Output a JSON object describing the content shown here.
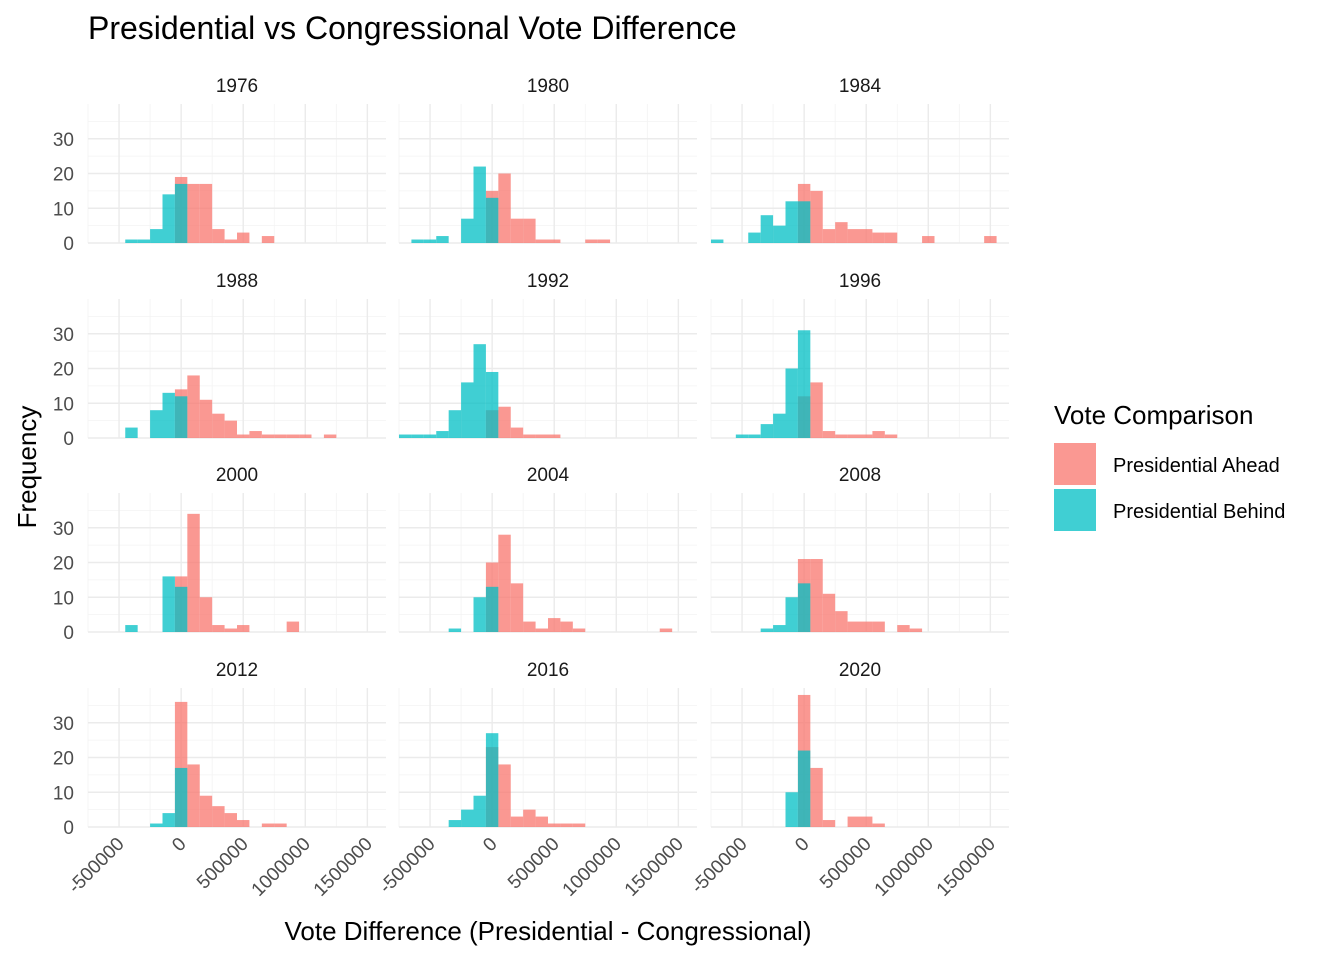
{
  "chart_data": {
    "type": "histogram",
    "title": "Presidential vs Congressional Vote Difference",
    "xlabel": "Vote Difference (Presidential - Congressional)",
    "ylabel": "Frequency",
    "xlim": [
      -750000,
      1650000
    ],
    "ylim": [
      0,
      40
    ],
    "x_ticks": [
      -500000,
      0,
      500000,
      1000000,
      1500000
    ],
    "x_tick_labels": [
      "-500000",
      "0",
      "500000",
      "1000000",
      "1500000"
    ],
    "y_ticks": [
      0,
      10,
      20,
      30
    ],
    "y_tick_labels": [
      "0",
      "10",
      "20",
      "30"
    ],
    "bin_width": 100000,
    "facet_layout": "3 columns, 4 rows",
    "legend": {
      "title": "Vote Comparison",
      "position": "right",
      "entries": [
        {
          "label": "Presidential Ahead",
          "color": "#F8766D"
        },
        {
          "label": "Presidential Behind",
          "color": "#00BFC4"
        }
      ]
    },
    "facets": [
      {
        "label": "1976",
        "behind": [
          {
            "x": -400000,
            "y": 1
          },
          {
            "x": -300000,
            "y": 1
          },
          {
            "x": -200000,
            "y": 4
          },
          {
            "x": -100000,
            "y": 14
          },
          {
            "x": 0,
            "y": 17
          }
        ],
        "ahead": [
          {
            "x": 0,
            "y": 19
          },
          {
            "x": 100000,
            "y": 17
          },
          {
            "x": 200000,
            "y": 17
          },
          {
            "x": 300000,
            "y": 4
          },
          {
            "x": 400000,
            "y": 1
          },
          {
            "x": 500000,
            "y": 3
          },
          {
            "x": 700000,
            "y": 2
          }
        ]
      },
      {
        "label": "1980",
        "behind": [
          {
            "x": -600000,
            "y": 1
          },
          {
            "x": -500000,
            "y": 1
          },
          {
            "x": -400000,
            "y": 2
          },
          {
            "x": -200000,
            "y": 7
          },
          {
            "x": -100000,
            "y": 22
          },
          {
            "x": 0,
            "y": 13
          }
        ],
        "ahead": [
          {
            "x": 0,
            "y": 15
          },
          {
            "x": 100000,
            "y": 20
          },
          {
            "x": 200000,
            "y": 7
          },
          {
            "x": 300000,
            "y": 7
          },
          {
            "x": 400000,
            "y": 1
          },
          {
            "x": 500000,
            "y": 1
          },
          {
            "x": 800000,
            "y": 1
          },
          {
            "x": 900000,
            "y": 1
          }
        ]
      },
      {
        "label": "1984",
        "behind": [
          {
            "x": -700000,
            "y": 1
          },
          {
            "x": -400000,
            "y": 3
          },
          {
            "x": -300000,
            "y": 8
          },
          {
            "x": -200000,
            "y": 5
          },
          {
            "x": -100000,
            "y": 12
          },
          {
            "x": 0,
            "y": 12
          }
        ],
        "ahead": [
          {
            "x": 0,
            "y": 17
          },
          {
            "x": 100000,
            "y": 15
          },
          {
            "x": 200000,
            "y": 4
          },
          {
            "x": 300000,
            "y": 6
          },
          {
            "x": 400000,
            "y": 4
          },
          {
            "x": 500000,
            "y": 4
          },
          {
            "x": 600000,
            "y": 3
          },
          {
            "x": 700000,
            "y": 3
          },
          {
            "x": 1000000,
            "y": 2
          },
          {
            "x": 1500000,
            "y": 2
          }
        ]
      },
      {
        "label": "1988",
        "behind": [
          {
            "x": -400000,
            "y": 3
          },
          {
            "x": -200000,
            "y": 8
          },
          {
            "x": -100000,
            "y": 13
          },
          {
            "x": 0,
            "y": 12
          }
        ],
        "ahead": [
          {
            "x": 0,
            "y": 14
          },
          {
            "x": 100000,
            "y": 18
          },
          {
            "x": 200000,
            "y": 11
          },
          {
            "x": 300000,
            "y": 7
          },
          {
            "x": 400000,
            "y": 5
          },
          {
            "x": 500000,
            "y": 1
          },
          {
            "x": 600000,
            "y": 2
          },
          {
            "x": 700000,
            "y": 1
          },
          {
            "x": 800000,
            "y": 1
          },
          {
            "x": 900000,
            "y": 1
          },
          {
            "x": 1000000,
            "y": 1
          },
          {
            "x": 1200000,
            "y": 1
          }
        ]
      },
      {
        "label": "1992",
        "behind": [
          {
            "x": -700000,
            "y": 1
          },
          {
            "x": -600000,
            "y": 1
          },
          {
            "x": -500000,
            "y": 1
          },
          {
            "x": -400000,
            "y": 2
          },
          {
            "x": -300000,
            "y": 8
          },
          {
            "x": -200000,
            "y": 16
          },
          {
            "x": -100000,
            "y": 27
          },
          {
            "x": 0,
            "y": 19
          }
        ],
        "ahead": [
          {
            "x": 0,
            "y": 8
          },
          {
            "x": 100000,
            "y": 9
          },
          {
            "x": 200000,
            "y": 3
          },
          {
            "x": 300000,
            "y": 1
          },
          {
            "x": 400000,
            "y": 1
          },
          {
            "x": 500000,
            "y": 1
          }
        ]
      },
      {
        "label": "1996",
        "behind": [
          {
            "x": -500000,
            "y": 1
          },
          {
            "x": -400000,
            "y": 1
          },
          {
            "x": -300000,
            "y": 4
          },
          {
            "x": -200000,
            "y": 7
          },
          {
            "x": -100000,
            "y": 20
          },
          {
            "x": 0,
            "y": 31
          }
        ],
        "ahead": [
          {
            "x": 0,
            "y": 12
          },
          {
            "x": 100000,
            "y": 16
          },
          {
            "x": 200000,
            "y": 2
          },
          {
            "x": 300000,
            "y": 1
          },
          {
            "x": 400000,
            "y": 1
          },
          {
            "x": 500000,
            "y": 1
          },
          {
            "x": 600000,
            "y": 2
          },
          {
            "x": 700000,
            "y": 1
          }
        ]
      },
      {
        "label": "2000",
        "behind": [
          {
            "x": -400000,
            "y": 2
          },
          {
            "x": -100000,
            "y": 16
          },
          {
            "x": 0,
            "y": 13
          }
        ],
        "ahead": [
          {
            "x": 0,
            "y": 16
          },
          {
            "x": 100000,
            "y": 34
          },
          {
            "x": 200000,
            "y": 10
          },
          {
            "x": 300000,
            "y": 2
          },
          {
            "x": 400000,
            "y": 1
          },
          {
            "x": 500000,
            "y": 2
          },
          {
            "x": 900000,
            "y": 3
          }
        ]
      },
      {
        "label": "2004",
        "behind": [
          {
            "x": -300000,
            "y": 1
          },
          {
            "x": -100000,
            "y": 10
          },
          {
            "x": 0,
            "y": 13
          }
        ],
        "ahead": [
          {
            "x": 0,
            "y": 20
          },
          {
            "x": 100000,
            "y": 28
          },
          {
            "x": 200000,
            "y": 14
          },
          {
            "x": 300000,
            "y": 3
          },
          {
            "x": 400000,
            "y": 1
          },
          {
            "x": 500000,
            "y": 4
          },
          {
            "x": 600000,
            "y": 3
          },
          {
            "x": 700000,
            "y": 1
          },
          {
            "x": 1400000,
            "y": 1
          }
        ]
      },
      {
        "label": "2008",
        "behind": [
          {
            "x": -300000,
            "y": 1
          },
          {
            "x": -200000,
            "y": 2
          },
          {
            "x": -100000,
            "y": 10
          },
          {
            "x": 0,
            "y": 14
          }
        ],
        "ahead": [
          {
            "x": 0,
            "y": 21
          },
          {
            "x": 100000,
            "y": 21
          },
          {
            "x": 200000,
            "y": 11
          },
          {
            "x": 300000,
            "y": 6
          },
          {
            "x": 400000,
            "y": 3
          },
          {
            "x": 500000,
            "y": 3
          },
          {
            "x": 600000,
            "y": 3
          },
          {
            "x": 800000,
            "y": 2
          },
          {
            "x": 900000,
            "y": 1
          }
        ]
      },
      {
        "label": "2012",
        "behind": [
          {
            "x": -200000,
            "y": 1
          },
          {
            "x": -100000,
            "y": 4
          },
          {
            "x": 0,
            "y": 17
          }
        ],
        "ahead": [
          {
            "x": 0,
            "y": 36
          },
          {
            "x": 100000,
            "y": 18
          },
          {
            "x": 200000,
            "y": 9
          },
          {
            "x": 300000,
            "y": 6
          },
          {
            "x": 400000,
            "y": 4
          },
          {
            "x": 500000,
            "y": 2
          },
          {
            "x": 700000,
            "y": 1
          },
          {
            "x": 800000,
            "y": 1
          }
        ]
      },
      {
        "label": "2016",
        "behind": [
          {
            "x": -300000,
            "y": 2
          },
          {
            "x": -200000,
            "y": 5
          },
          {
            "x": -100000,
            "y": 9
          },
          {
            "x": 0,
            "y": 27
          }
        ],
        "ahead": [
          {
            "x": 0,
            "y": 23
          },
          {
            "x": 100000,
            "y": 18
          },
          {
            "x": 200000,
            "y": 3
          },
          {
            "x": 300000,
            "y": 5
          },
          {
            "x": 400000,
            "y": 3
          },
          {
            "x": 500000,
            "y": 1
          },
          {
            "x": 600000,
            "y": 1
          },
          {
            "x": 700000,
            "y": 1
          }
        ]
      },
      {
        "label": "2020",
        "behind": [
          {
            "x": -100000,
            "y": 10
          },
          {
            "x": 0,
            "y": 22
          }
        ],
        "ahead": [
          {
            "x": 0,
            "y": 38
          },
          {
            "x": 100000,
            "y": 17
          },
          {
            "x": 200000,
            "y": 2
          },
          {
            "x": 400000,
            "y": 3
          },
          {
            "x": 500000,
            "y": 3
          },
          {
            "x": 600000,
            "y": 1
          }
        ]
      }
    ]
  }
}
